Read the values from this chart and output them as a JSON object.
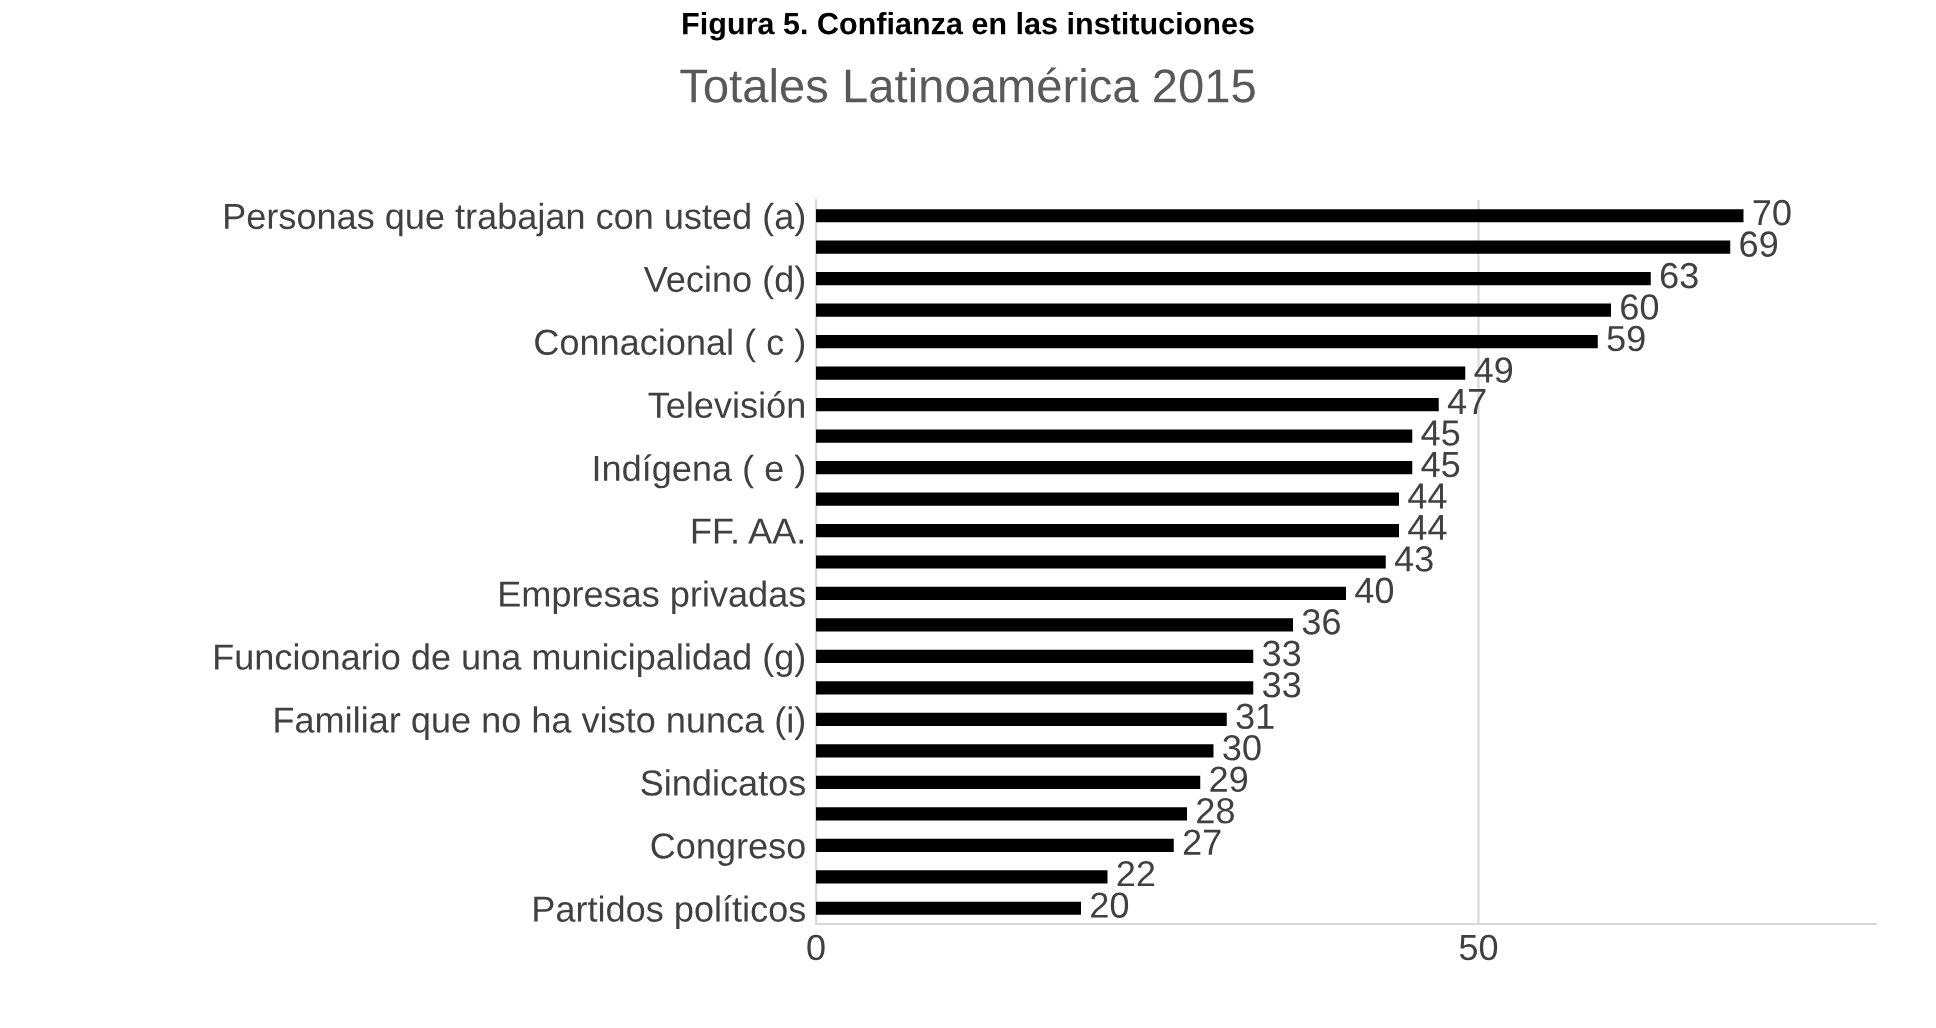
{
  "chart_data": {
    "type": "bar",
    "orientation": "horizontal",
    "title": "Figura 5. Confianza en las instituciones",
    "subtitle": "Totales Latinoamérica 2015",
    "categories": [
      "Personas que trabajan con usted (a)",
      null,
      "Vecino (d)",
      null,
      "Connacional ( c )",
      null,
      "Televisión",
      null,
      "Indígena ( e )",
      null,
      "FF. AA.",
      null,
      "Empresas privadas",
      null,
      "Funcionario de una municipalidad (g)",
      null,
      "Familiar que no ha visto nunca (i)",
      null,
      "Sindicatos",
      null,
      "Congreso",
      null,
      "Partidos políticos"
    ],
    "values": [
      70,
      69,
      63,
      60,
      59,
      49,
      47,
      45,
      45,
      44,
      44,
      43,
      40,
      36,
      33,
      33,
      31,
      30,
      29,
      28,
      27,
      22,
      20
    ],
    "color": "#000000",
    "xlim": [
      0,
      80
    ],
    "xticks": [
      0,
      50
    ],
    "grid": "x",
    "data_labels": true
  }
}
